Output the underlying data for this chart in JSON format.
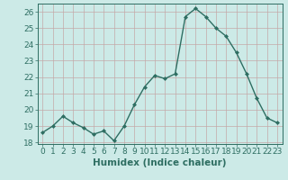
{
  "x": [
    0,
    1,
    2,
    3,
    4,
    5,
    6,
    7,
    8,
    9,
    10,
    11,
    12,
    13,
    14,
    15,
    16,
    17,
    18,
    19,
    20,
    21,
    22,
    23
  ],
  "y": [
    18.6,
    19.0,
    19.6,
    19.2,
    18.9,
    18.5,
    18.7,
    18.1,
    19.0,
    20.3,
    21.4,
    22.1,
    21.9,
    22.2,
    25.7,
    26.2,
    25.7,
    25.0,
    24.5,
    23.5,
    22.2,
    20.7,
    19.5,
    19.2
  ],
  "line_color": "#2e6e62",
  "marker": "D",
  "marker_size": 2.0,
  "line_width": 1.0,
  "bg_color": "#cceae7",
  "grid_color": "#c4a8a8",
  "axis_color": "#2e6e62",
  "xlabel": "Humidex (Indice chaleur)",
  "ylim": [
    17.9,
    26.5
  ],
  "xlim": [
    -0.5,
    23.5
  ],
  "yticks": [
    18,
    19,
    20,
    21,
    22,
    23,
    24,
    25,
    26
  ],
  "xticks": [
    0,
    1,
    2,
    3,
    4,
    5,
    6,
    7,
    8,
    9,
    10,
    11,
    12,
    13,
    14,
    15,
    16,
    17,
    18,
    19,
    20,
    21,
    22,
    23
  ],
  "font_size": 6.5,
  "xlabel_fontsize": 7.5
}
